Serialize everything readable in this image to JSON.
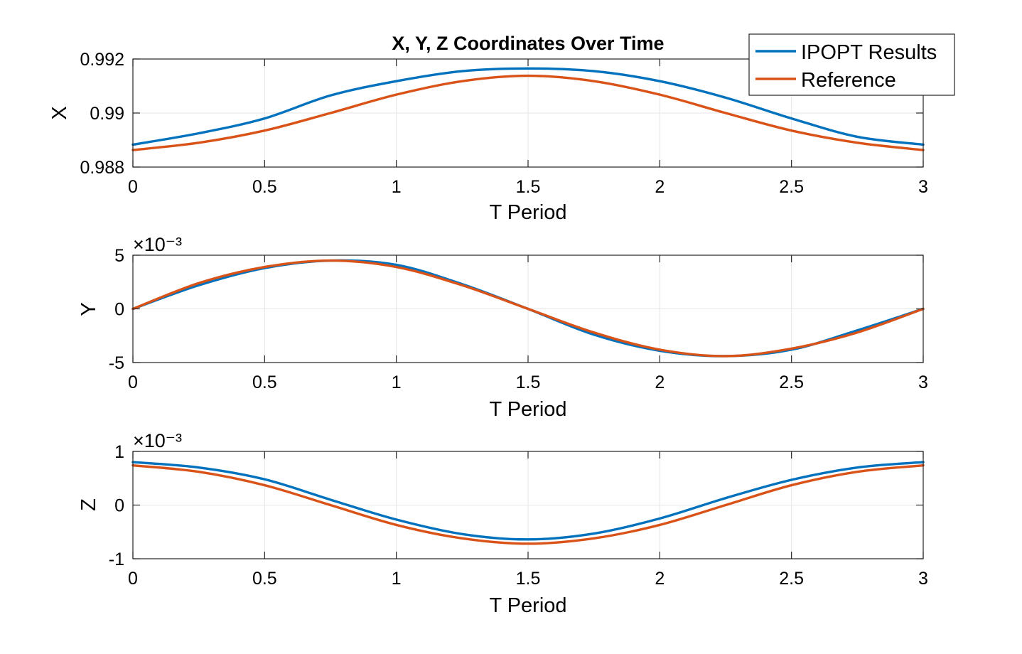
{
  "chart_data": [
    {
      "type": "line",
      "title": "X, Y, Z Coordinates Over Time",
      "xlabel": "T Period",
      "ylabel": "X",
      "xlim": [
        0,
        3
      ],
      "ylim": [
        0.988,
        0.992
      ],
      "xticks": [
        0,
        0.5,
        1,
        1.5,
        2,
        2.5,
        3
      ],
      "xtick_labels": [
        "0",
        "0.5",
        "1",
        "1.5",
        "2",
        "2.5",
        "3"
      ],
      "yticks": [
        0.988,
        0.99,
        0.992
      ],
      "ytick_labels": [
        "0.988",
        "0.99",
        "0.992"
      ],
      "exponent_label": "",
      "grid": true,
      "legend": {
        "location": "top-right",
        "entries": [
          "IPOPT Results",
          "Reference"
        ]
      },
      "x": [
        0,
        0.25,
        0.5,
        0.75,
        1,
        1.25,
        1.5,
        1.75,
        2,
        2.25,
        2.5,
        2.75,
        3
      ],
      "series": [
        {
          "name": "IPOPT Results",
          "color": "#0072BD",
          "values": [
            0.98883,
            0.98925,
            0.9898,
            0.99065,
            0.99118,
            0.99155,
            0.99165,
            0.99155,
            0.99118,
            0.99057,
            0.9898,
            0.98912,
            0.98883
          ]
        },
        {
          "name": "Reference",
          "color": "#D95319",
          "values": [
            0.98863,
            0.9889,
            0.98935,
            0.99,
            0.99068,
            0.99118,
            0.99138,
            0.99118,
            0.99068,
            0.99,
            0.98935,
            0.9889,
            0.98863
          ]
        }
      ]
    },
    {
      "type": "line",
      "title": "",
      "xlabel": "T Period",
      "ylabel": "Y",
      "xlim": [
        0,
        3
      ],
      "ylim": [
        -5,
        5
      ],
      "xticks": [
        0,
        0.5,
        1,
        1.5,
        2,
        2.5,
        3
      ],
      "xtick_labels": [
        "0",
        "0.5",
        "1",
        "1.5",
        "2",
        "2.5",
        "3"
      ],
      "yticks": [
        -5,
        0,
        5
      ],
      "ytick_labels": [
        "-5",
        "0",
        "5"
      ],
      "exponent_label": "×10⁻³",
      "grid": true,
      "x": [
        0,
        0.25,
        0.5,
        0.75,
        1,
        1.25,
        1.5,
        1.75,
        2,
        2.25,
        2.5,
        2.75,
        3
      ],
      "series": [
        {
          "name": "IPOPT Results",
          "color": "#0072BD",
          "values": [
            0,
            2.2,
            3.8,
            4.5,
            4.1,
            2.3,
            0,
            -2.4,
            -3.9,
            -4.4,
            -3.8,
            -2.0,
            0
          ]
        },
        {
          "name": "Reference",
          "color": "#D95319",
          "values": [
            0,
            2.4,
            3.9,
            4.5,
            3.9,
            2.2,
            0,
            -2.2,
            -3.8,
            -4.4,
            -3.7,
            -2.2,
            0
          ]
        }
      ]
    },
    {
      "type": "line",
      "title": "",
      "xlabel": "T Period",
      "ylabel": "Z",
      "xlim": [
        0,
        3
      ],
      "ylim": [
        -1,
        1
      ],
      "xticks": [
        0,
        0.5,
        1,
        1.5,
        2,
        2.5,
        3
      ],
      "xtick_labels": [
        "0",
        "0.5",
        "1",
        "1.5",
        "2",
        "2.5",
        "3"
      ],
      "yticks": [
        -1,
        0,
        1
      ],
      "ytick_labels": [
        "-1",
        "0",
        "1"
      ],
      "exponent_label": "×10⁻³",
      "grid": true,
      "x": [
        0,
        0.25,
        0.5,
        0.75,
        1,
        1.25,
        1.5,
        1.75,
        2,
        2.25,
        2.5,
        2.75,
        3
      ],
      "series": [
        {
          "name": "IPOPT Results",
          "color": "#0072BD",
          "values": [
            0.8,
            0.7,
            0.48,
            0.1,
            -0.27,
            -0.54,
            -0.64,
            -0.53,
            -0.25,
            0.13,
            0.47,
            0.7,
            0.8
          ]
        },
        {
          "name": "Reference",
          "color": "#D95319",
          "values": [
            0.74,
            0.62,
            0.37,
            0.0,
            -0.37,
            -0.62,
            -0.72,
            -0.62,
            -0.37,
            0.0,
            0.37,
            0.62,
            0.74
          ]
        }
      ]
    }
  ]
}
